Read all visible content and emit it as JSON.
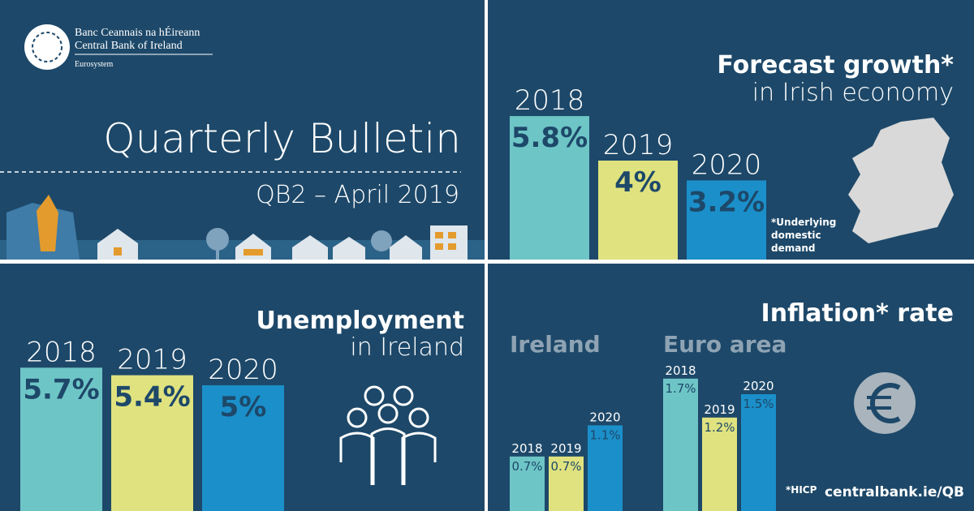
{
  "logo": {
    "irish": "Banc Ceannais na hÉireann",
    "english": "Central Bank of Ireland",
    "sub": "Eurosystem"
  },
  "title": "Quarterly Bulletin",
  "subtitle": "QB2 – April 2019",
  "url": "centralbank.ie/QB",
  "chart_data": [
    {
      "type": "bar",
      "title": "Forecast growth*",
      "subtitle": "in Irish economy",
      "categories": [
        "2018",
        "2019",
        "2020"
      ],
      "values": [
        5.8,
        4,
        3.2
      ],
      "value_labels": [
        "5.8%",
        "4%",
        "3.2%"
      ],
      "colors": [
        "#6ec5c6",
        "#dfe27f",
        "#1b8fc9"
      ],
      "note": "*Underlying domestic demand"
    },
    {
      "type": "bar",
      "title": "Unemployment",
      "subtitle": "in Ireland",
      "categories": [
        "2018",
        "2019",
        "2020"
      ],
      "values": [
        5.7,
        5.4,
        5
      ],
      "value_labels": [
        "5.7%",
        "5.4%",
        "5%"
      ],
      "colors": [
        "#6ec5c6",
        "#dfe27f",
        "#1b8fc9"
      ]
    },
    {
      "type": "grouped-bar",
      "title": "Inflation* rate",
      "categories": [
        "2018",
        "2019",
        "2020"
      ],
      "series": [
        {
          "name": "Ireland",
          "values": [
            0.7,
            0.7,
            1.1
          ],
          "value_labels": [
            "0.7%",
            "0.7%",
            "1.1%"
          ]
        },
        {
          "name": "Euro area",
          "values": [
            1.7,
            1.2,
            1.5
          ],
          "value_labels": [
            "1.7%",
            "1.2%",
            "1.5%"
          ]
        }
      ],
      "colors": [
        "#6ec5c6",
        "#dfe27f",
        "#1b8fc9"
      ],
      "note": "*HICP"
    }
  ]
}
